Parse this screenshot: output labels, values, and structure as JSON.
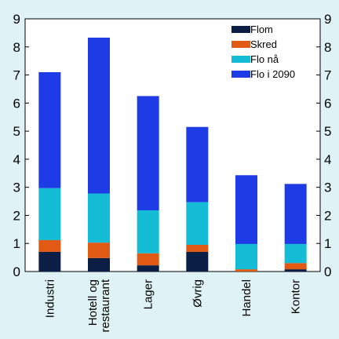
{
  "chart_data": {
    "type": "bar",
    "stacked": true,
    "categories": [
      [
        "Industri"
      ],
      [
        "Hotell og",
        "restaurant"
      ],
      [
        "Lager"
      ],
      [
        "Øvrig"
      ],
      [
        "Handel"
      ],
      [
        "Kontor"
      ]
    ],
    "series": [
      {
        "name": "Flom",
        "color": "#0a1e46",
        "values": [
          0.7,
          0.48,
          0.22,
          0.7,
          0.0,
          0.08
        ]
      },
      {
        "name": "Skred",
        "color": "#e05a14",
        "values": [
          0.42,
          0.55,
          0.43,
          0.25,
          0.08,
          0.22
        ]
      },
      {
        "name": "Flo nå",
        "color": "#14bcd6",
        "values": [
          1.85,
          1.75,
          1.53,
          1.52,
          0.9,
          0.68
        ]
      },
      {
        "name": "Flo i 2090",
        "color": "#1e3ce6",
        "values": [
          4.13,
          5.55,
          4.07,
          2.68,
          2.45,
          2.14
        ]
      }
    ],
    "ylim": [
      0,
      9
    ],
    "yticks": [
      0,
      1,
      2,
      3,
      4,
      5,
      6,
      7,
      8,
      9
    ],
    "right_axis_ticks": true,
    "grid": false,
    "legend_position": "top-right",
    "title": "",
    "xlabel": "",
    "ylabel": ""
  }
}
